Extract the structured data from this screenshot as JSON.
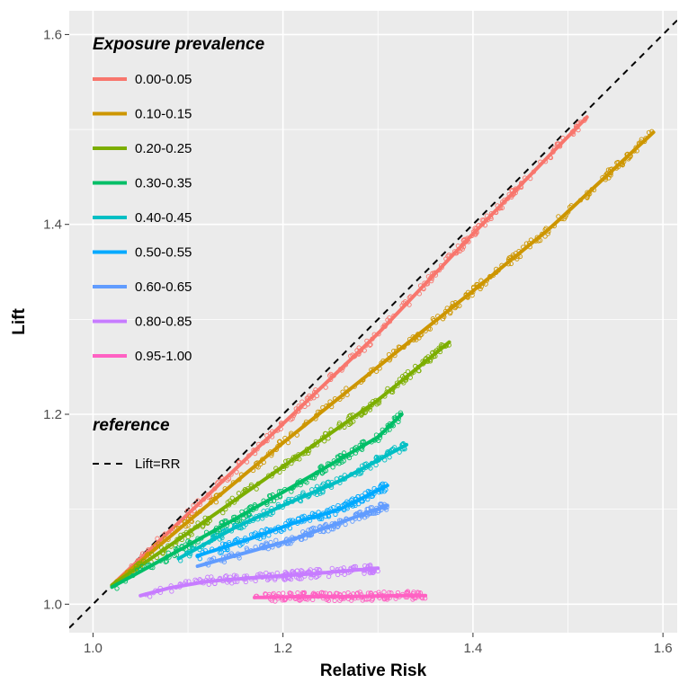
{
  "chart_data": {
    "type": "line",
    "xlabel": "Relative Risk",
    "ylabel": "Lift",
    "xlim": [
      0.975,
      1.615
    ],
    "ylim": [
      0.97,
      1.625
    ],
    "xticks": [
      1.0,
      1.2,
      1.4,
      1.6
    ],
    "yticks": [
      1.0,
      1.2,
      1.4,
      1.6
    ],
    "xtick_labels": [
      "1.0",
      "1.2",
      "1.4",
      "1.6"
    ],
    "ytick_labels": [
      "1.0",
      "1.2",
      "1.4",
      "1.6"
    ],
    "grid": true,
    "background": "#ebebeb",
    "gridline_color": "#ffffff",
    "legend_position": "top-left",
    "legend_title": "Exposure prevalence",
    "reference_title": "reference",
    "reference_label": "Lift=RR",
    "reference_line": {
      "x": [
        0.975,
        1.615
      ],
      "y": [
        0.975,
        1.615
      ],
      "style": "dashed",
      "color": "#000000"
    },
    "series": [
      {
        "name": "0.00-0.05",
        "color": "#F8766D",
        "x": [
          1.02,
          1.1,
          1.2,
          1.3,
          1.4,
          1.52
        ],
        "y": [
          1.02,
          1.095,
          1.19,
          1.285,
          1.39,
          1.513
        ]
      },
      {
        "name": "0.10-0.15",
        "color": "#CD9600",
        "x": [
          1.02,
          1.1,
          1.2,
          1.3,
          1.4,
          1.48,
          1.59
        ],
        "y": [
          1.02,
          1.087,
          1.17,
          1.25,
          1.33,
          1.395,
          1.497
        ]
      },
      {
        "name": "0.20-0.25",
        "color": "#7CAE00",
        "x": [
          1.02,
          1.1,
          1.2,
          1.3,
          1.375
        ],
        "y": [
          1.02,
          1.075,
          1.145,
          1.215,
          1.276
        ]
      },
      {
        "name": "0.30-0.35",
        "color": "#00BE67",
        "x": [
          1.02,
          1.1,
          1.2,
          1.3,
          1.325
        ],
        "y": [
          1.018,
          1.062,
          1.118,
          1.176,
          1.2
        ]
      },
      {
        "name": "0.40-0.45",
        "color": "#00BFC4",
        "x": [
          1.09,
          1.15,
          1.2,
          1.26,
          1.33
        ],
        "y": [
          1.048,
          1.081,
          1.104,
          1.13,
          1.168
        ]
      },
      {
        "name": "0.50-0.55",
        "color": "#00A9FF",
        "x": [
          1.11,
          1.16,
          1.21,
          1.26,
          1.31
        ],
        "y": [
          1.051,
          1.067,
          1.085,
          1.1,
          1.125
        ]
      },
      {
        "name": "0.60-0.65",
        "color": "#619CFF",
        "x": [
          1.11,
          1.16,
          1.21,
          1.26,
          1.31
        ],
        "y": [
          1.04,
          1.054,
          1.068,
          1.086,
          1.104
        ]
      },
      {
        "name": "0.80-0.85",
        "color": "#C77CFF",
        "x": [
          1.05,
          1.08,
          1.12,
          1.17,
          1.23,
          1.3
        ],
        "y": [
          1.009,
          1.017,
          1.024,
          1.028,
          1.032,
          1.038
        ]
      },
      {
        "name": "0.95-1.00",
        "color": "#FF61C3",
        "x": [
          1.17,
          1.22,
          1.27,
          1.32,
          1.35
        ],
        "y": [
          1.007,
          1.008,
          1.008,
          1.009,
          1.009
        ]
      }
    ]
  }
}
